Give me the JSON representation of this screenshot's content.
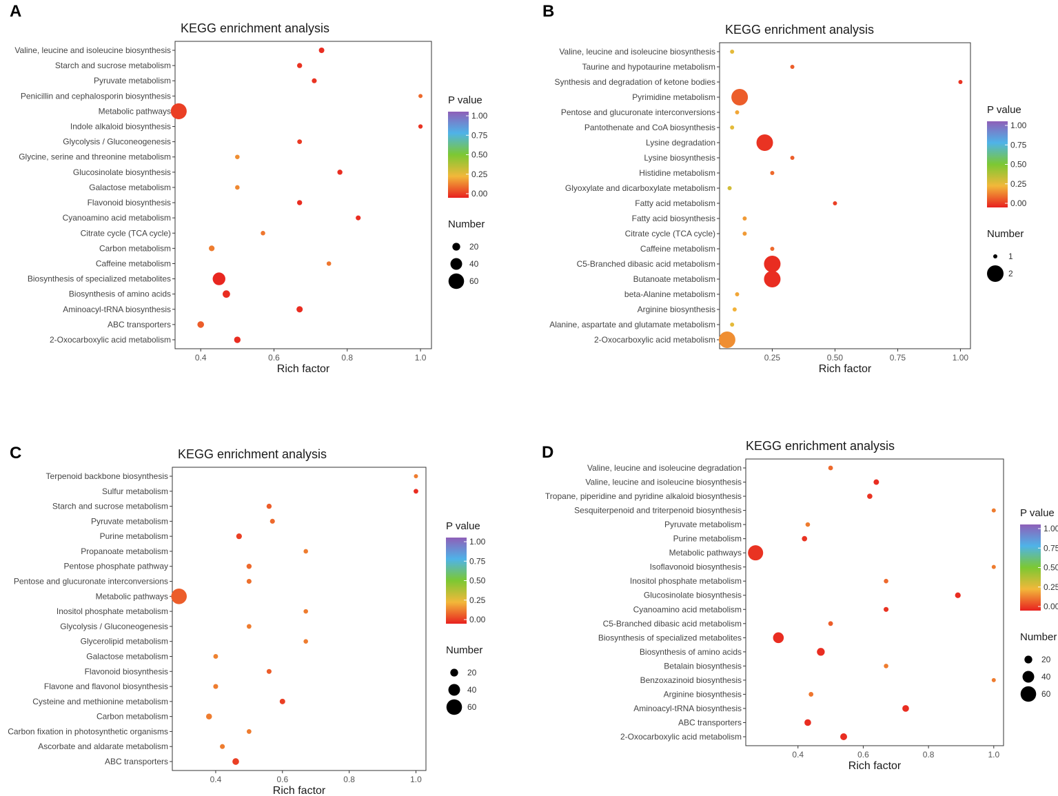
{
  "figure": {
    "panels": [
      "A",
      "B",
      "C",
      "D"
    ]
  },
  "legend": {
    "pvalue_title": "P value",
    "number_title": "Number",
    "pvalue_ticks": [
      "1.00",
      "0.75",
      "0.50",
      "0.25",
      "0.00"
    ],
    "colors": {
      "high": "#8e5fb8",
      "upper": "#4fb3e8",
      "mid": "#7cc832",
      "lower": "#f2b83a",
      "low": "#e8211f"
    }
  },
  "chart_data": [
    {
      "type": "scatter",
      "panel": "A",
      "title": "KEGG enrichment analysis",
      "xlabel": "Rich factor",
      "ylabel": "",
      "xlim": [
        0.33,
        1.03
      ],
      "xticks": [
        0.4,
        0.6,
        0.8,
        1.0
      ],
      "xtick_labels": [
        "0.4",
        "0.6",
        "0.8",
        "1.0"
      ],
      "size_legend": {
        "labels": [
          "20",
          "40",
          "60"
        ],
        "values": [
          20,
          40,
          60
        ]
      },
      "size_range": [
        1,
        65
      ],
      "points": [
        {
          "category": "Valine, leucine and isoleucine biosynthesis",
          "rich_factor": 0.73,
          "number": 8,
          "pvalue": 0.02
        },
        {
          "category": "Starch and sucrose metabolism",
          "rich_factor": 0.67,
          "number": 6,
          "pvalue": 0.03
        },
        {
          "category": "Pyruvate metabolism",
          "rich_factor": 0.71,
          "number": 5,
          "pvalue": 0.03
        },
        {
          "category": "Penicillin and cephalosporin biosynthesis",
          "rich_factor": 1.0,
          "number": 1,
          "pvalue": 0.12
        },
        {
          "category": "Metabolic pathways",
          "rich_factor": 0.34,
          "number": 62,
          "pvalue": 0.05
        },
        {
          "category": "Indole alkaloid biosynthesis",
          "rich_factor": 1.0,
          "number": 2,
          "pvalue": 0.03
        },
        {
          "category": "Glycolysis / Gluconeogenesis",
          "rich_factor": 0.67,
          "number": 4,
          "pvalue": 0.04
        },
        {
          "category": "Glycine, serine and threonine metabolism",
          "rich_factor": 0.5,
          "number": 3,
          "pvalue": 0.18
        },
        {
          "category": "Glucosinolate biosynthesis",
          "rich_factor": 0.78,
          "number": 6,
          "pvalue": 0.02
        },
        {
          "category": "Galactose metabolism",
          "rich_factor": 0.5,
          "number": 3,
          "pvalue": 0.17
        },
        {
          "category": "Flavonoid biosynthesis",
          "rich_factor": 0.67,
          "number": 6,
          "pvalue": 0.02
        },
        {
          "category": "Cyanoamino acid metabolism",
          "rich_factor": 0.83,
          "number": 5,
          "pvalue": 0.02
        },
        {
          "category": "Citrate cycle (TCA cycle)",
          "rich_factor": 0.57,
          "number": 3,
          "pvalue": 0.14
        },
        {
          "category": "Carbon metabolism",
          "rich_factor": 0.43,
          "number": 9,
          "pvalue": 0.15
        },
        {
          "category": "Caffeine metabolism",
          "rich_factor": 0.75,
          "number": 3,
          "pvalue": 0.14
        },
        {
          "category": "Biosynthesis of specialized metabolites",
          "rich_factor": 0.45,
          "number": 45,
          "pvalue": 0.01
        },
        {
          "category": "Biosynthesis of amino acids",
          "rich_factor": 0.47,
          "number": 18,
          "pvalue": 0.02
        },
        {
          "category": "Aminoacyl-tRNA biosynthesis",
          "rich_factor": 0.67,
          "number": 12,
          "pvalue": 0.02
        },
        {
          "category": "ABC transporters",
          "rich_factor": 0.4,
          "number": 14,
          "pvalue": 0.1
        },
        {
          "category": "2-Oxocarboxylic acid metabolism",
          "rich_factor": 0.5,
          "number": 13,
          "pvalue": 0.02
        }
      ]
    },
    {
      "type": "scatter",
      "panel": "B",
      "title": "KEGG enrichment analysis",
      "xlabel": "Rich factor",
      "ylabel": "",
      "xlim": [
        0.04,
        1.04
      ],
      "xticks": [
        0.25,
        0.5,
        0.75,
        1.0
      ],
      "xtick_labels": [
        "0.25",
        "0.50",
        "0.75",
        "1.00"
      ],
      "size_legend": {
        "labels": [
          "1",
          "2"
        ],
        "values": [
          1,
          2
        ]
      },
      "size_range": [
        1,
        2
      ],
      "points": [
        {
          "category": "Valine, leucine and isoleucine biosynthesis",
          "rich_factor": 0.09,
          "number": 1,
          "pvalue": 0.28
        },
        {
          "category": "Taurine and hypotaurine metabolism",
          "rich_factor": 0.33,
          "number": 1,
          "pvalue": 0.1
        },
        {
          "category": "Synthesis and degradation of ketone bodies",
          "rich_factor": 1.0,
          "number": 1,
          "pvalue": 0.03
        },
        {
          "category": "Pyrimidine metabolism",
          "rich_factor": 0.12,
          "number": 2,
          "pvalue": 0.1
        },
        {
          "category": "Pentose and glucuronate interconversions",
          "rich_factor": 0.11,
          "number": 1,
          "pvalue": 0.22
        },
        {
          "category": "Pantothenate and CoA biosynthesis",
          "rich_factor": 0.09,
          "number": 1,
          "pvalue": 0.28
        },
        {
          "category": "Lysine degradation",
          "rich_factor": 0.22,
          "number": 2,
          "pvalue": 0.03
        },
        {
          "category": "Lysine biosynthesis",
          "rich_factor": 0.33,
          "number": 1,
          "pvalue": 0.1
        },
        {
          "category": "Histidine metabolism",
          "rich_factor": 0.25,
          "number": 1,
          "pvalue": 0.12
        },
        {
          "category": "Glyoxylate and dicarboxylate metabolism",
          "rich_factor": 0.08,
          "number": 1,
          "pvalue": 0.32
        },
        {
          "category": "Fatty acid metabolism",
          "rich_factor": 0.5,
          "number": 1,
          "pvalue": 0.05
        },
        {
          "category": "Fatty acid biosynthesis",
          "rich_factor": 0.14,
          "number": 1,
          "pvalue": 0.2
        },
        {
          "category": "Citrate cycle (TCA cycle)",
          "rich_factor": 0.14,
          "number": 1,
          "pvalue": 0.2
        },
        {
          "category": "Caffeine metabolism",
          "rich_factor": 0.25,
          "number": 1,
          "pvalue": 0.12
        },
        {
          "category": "C5-Branched dibasic acid metabolism",
          "rich_factor": 0.25,
          "number": 2,
          "pvalue": 0.02
        },
        {
          "category": "Butanoate metabolism",
          "rich_factor": 0.25,
          "number": 2,
          "pvalue": 0.02
        },
        {
          "category": "beta-Alanine metabolism",
          "rich_factor": 0.11,
          "number": 1,
          "pvalue": 0.22
        },
        {
          "category": "Arginine biosynthesis",
          "rich_factor": 0.1,
          "number": 1,
          "pvalue": 0.24
        },
        {
          "category": "Alanine, aspartate and glutamate metabolism",
          "rich_factor": 0.09,
          "number": 1,
          "pvalue": 0.28
        },
        {
          "category": "2-Oxocarboxylic acid metabolism",
          "rich_factor": 0.07,
          "number": 2,
          "pvalue": 0.18
        }
      ]
    },
    {
      "type": "scatter",
      "panel": "C",
      "title": "KEGG enrichment analysis",
      "xlabel": "Rich factor",
      "ylabel": "",
      "xlim": [
        0.27,
        1.03
      ],
      "xticks": [
        0.4,
        0.6,
        0.8,
        1.0
      ],
      "xtick_labels": [
        "0.4",
        "0.6",
        "0.8",
        "1.0"
      ],
      "size_legend": {
        "labels": [
          "20",
          "40",
          "60"
        ],
        "values": [
          20,
          40,
          60
        ]
      },
      "size_range": [
        1,
        65
      ],
      "points": [
        {
          "category": "Terpenoid backbone biosynthesis",
          "rich_factor": 1.0,
          "number": 1,
          "pvalue": 0.15
        },
        {
          "category": "Sulfur metabolism",
          "rich_factor": 1.0,
          "number": 4,
          "pvalue": 0.02
        },
        {
          "category": "Starch and sucrose metabolism",
          "rich_factor": 0.56,
          "number": 6,
          "pvalue": 0.1
        },
        {
          "category": "Pyruvate metabolism",
          "rich_factor": 0.57,
          "number": 5,
          "pvalue": 0.12
        },
        {
          "category": "Purine metabolism",
          "rich_factor": 0.47,
          "number": 9,
          "pvalue": 0.05
        },
        {
          "category": "Propanoate metabolism",
          "rich_factor": 0.67,
          "number": 3,
          "pvalue": 0.15
        },
        {
          "category": "Pentose phosphate pathway",
          "rich_factor": 0.5,
          "number": 6,
          "pvalue": 0.12
        },
        {
          "category": "Pentose and glucuronate interconversions",
          "rich_factor": 0.5,
          "number": 5,
          "pvalue": 0.13
        },
        {
          "category": "Metabolic pathways",
          "rich_factor": 0.29,
          "number": 60,
          "pvalue": 0.1
        },
        {
          "category": "Inositol phosphate metabolism",
          "rich_factor": 0.67,
          "number": 3,
          "pvalue": 0.15
        },
        {
          "category": "Glycolysis / Gluconeogenesis",
          "rich_factor": 0.5,
          "number": 4,
          "pvalue": 0.15
        },
        {
          "category": "Glycerolipid metabolism",
          "rich_factor": 0.67,
          "number": 3,
          "pvalue": 0.15
        },
        {
          "category": "Galactose metabolism",
          "rich_factor": 0.4,
          "number": 4,
          "pvalue": 0.16
        },
        {
          "category": "Flavonoid biosynthesis",
          "rich_factor": 0.56,
          "number": 5,
          "pvalue": 0.1
        },
        {
          "category": "Flavone and flavonol biosynthesis",
          "rich_factor": 0.4,
          "number": 5,
          "pvalue": 0.15
        },
        {
          "category": "Cysteine and methionine metabolism",
          "rich_factor": 0.6,
          "number": 8,
          "pvalue": 0.05
        },
        {
          "category": "Carbon metabolism",
          "rich_factor": 0.38,
          "number": 10,
          "pvalue": 0.15
        },
        {
          "category": "Carbon fixation in photosynthetic organisms",
          "rich_factor": 0.5,
          "number": 4,
          "pvalue": 0.15
        },
        {
          "category": "Ascorbate and aldarate metabolism",
          "rich_factor": 0.42,
          "number": 5,
          "pvalue": 0.15
        },
        {
          "category": "ABC transporters",
          "rich_factor": 0.46,
          "number": 14,
          "pvalue": 0.05
        }
      ]
    },
    {
      "type": "scatter",
      "panel": "D",
      "title": "KEGG enrichment analysis",
      "xlabel": "Rich factor",
      "ylabel": "",
      "xlim": [
        0.24,
        1.03
      ],
      "xticks": [
        0.4,
        0.6,
        0.8,
        1.0
      ],
      "xtick_labels": [
        "0.4",
        "0.6",
        "0.8",
        "1.0"
      ],
      "size_legend": {
        "labels": [
          "20",
          "40",
          "60"
        ],
        "values": [
          20,
          40,
          60
        ]
      },
      "size_range": [
        1,
        65
      ],
      "points": [
        {
          "category": "Valine, leucine and isoleucine degradation",
          "rich_factor": 0.5,
          "number": 4,
          "pvalue": 0.12
        },
        {
          "category": "Valine, leucine and isoleucine biosynthesis",
          "rich_factor": 0.64,
          "number": 8,
          "pvalue": 0.02
        },
        {
          "category": "Tropane, piperidine and pyridine alkaloid biosynthesis",
          "rich_factor": 0.62,
          "number": 7,
          "pvalue": 0.03
        },
        {
          "category": "Sesquiterpenoid and triterpenoid biosynthesis",
          "rich_factor": 1.0,
          "number": 1,
          "pvalue": 0.15
        },
        {
          "category": "Pyruvate metabolism",
          "rich_factor": 0.43,
          "number": 3,
          "pvalue": 0.15
        },
        {
          "category": "Purine metabolism",
          "rich_factor": 0.42,
          "number": 7,
          "pvalue": 0.03
        },
        {
          "category": "Metabolic pathways",
          "rich_factor": 0.27,
          "number": 58,
          "pvalue": 0.03
        },
        {
          "category": "Isoflavonoid biosynthesis",
          "rich_factor": 1.0,
          "number": 1,
          "pvalue": 0.15
        },
        {
          "category": "Inositol phosphate metabolism",
          "rich_factor": 0.67,
          "number": 3,
          "pvalue": 0.12
        },
        {
          "category": "Glucosinolate biosynthesis",
          "rich_factor": 0.89,
          "number": 9,
          "pvalue": 0.02
        },
        {
          "category": "Cyanoamino acid metabolism",
          "rich_factor": 0.67,
          "number": 5,
          "pvalue": 0.03
        },
        {
          "category": "C5-Branched dibasic acid metabolism",
          "rich_factor": 0.5,
          "number": 4,
          "pvalue": 0.1
        },
        {
          "category": "Biosynthesis of specialized metabolites",
          "rich_factor": 0.34,
          "number": 35,
          "pvalue": 0.02
        },
        {
          "category": "Biosynthesis of amino acids",
          "rich_factor": 0.47,
          "number": 20,
          "pvalue": 0.02
        },
        {
          "category": "Betalain biosynthesis",
          "rich_factor": 0.67,
          "number": 3,
          "pvalue": 0.15
        },
        {
          "category": "Benzoxazinoid biosynthesis",
          "rich_factor": 1.0,
          "number": 1,
          "pvalue": 0.15
        },
        {
          "category": "Arginine biosynthesis",
          "rich_factor": 0.44,
          "number": 4,
          "pvalue": 0.14
        },
        {
          "category": "Aminoacyl-tRNA biosynthesis",
          "rich_factor": 0.73,
          "number": 14,
          "pvalue": 0.02
        },
        {
          "category": "ABC transporters",
          "rich_factor": 0.43,
          "number": 14,
          "pvalue": 0.02
        },
        {
          "category": "2-Oxocarboxylic acid metabolism",
          "rich_factor": 0.54,
          "number": 15,
          "pvalue": 0.02
        }
      ]
    }
  ]
}
